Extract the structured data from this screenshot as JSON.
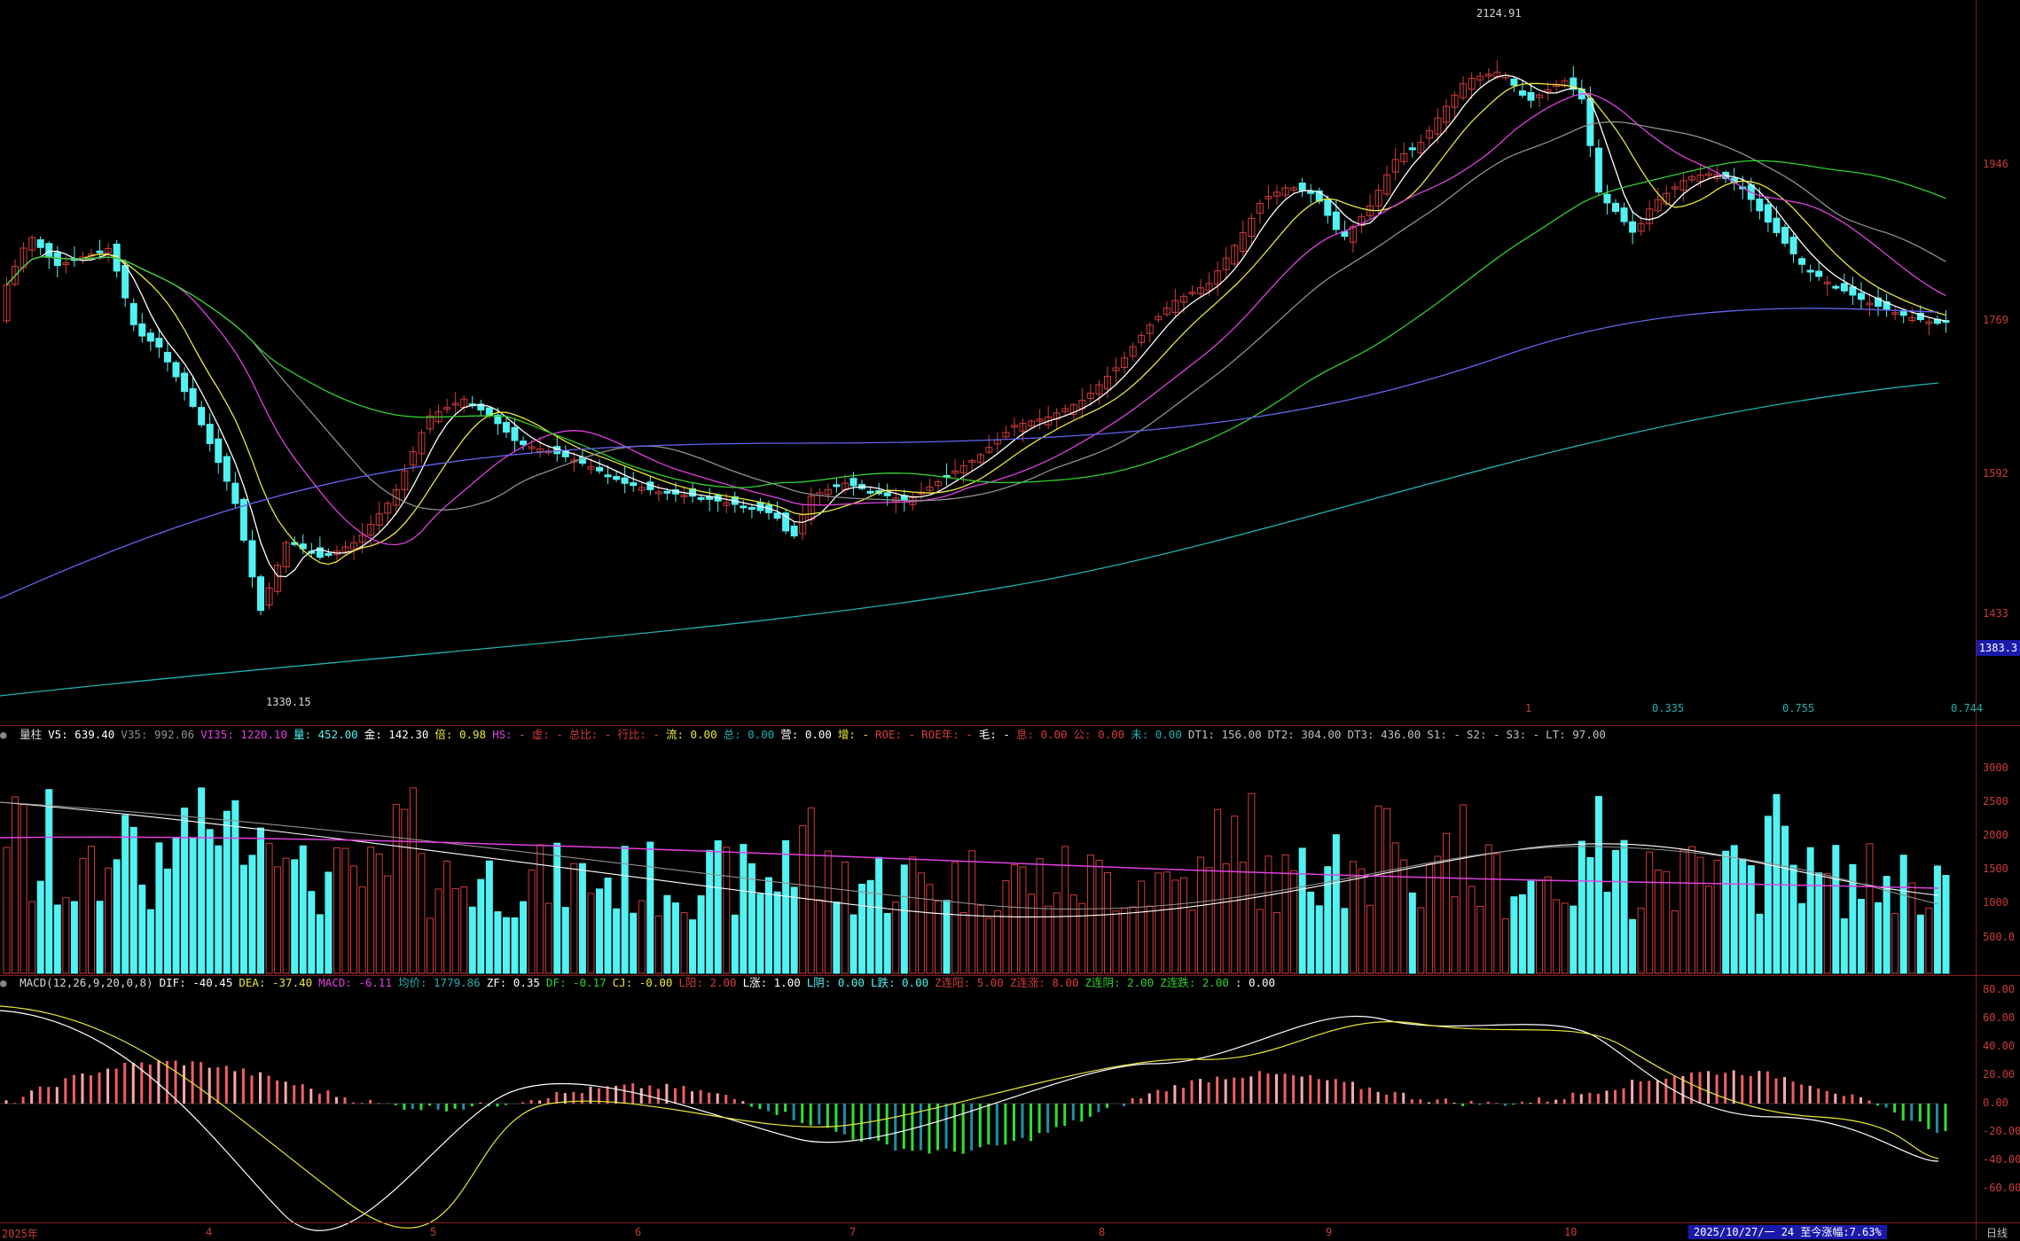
{
  "colors": {
    "up": "#d23c3c",
    "down": "#52f2f2",
    "ma5": "#ffffff",
    "ma10": "#e8e838",
    "ma20": "#e040e0",
    "ma30": "#909090",
    "ma60": "#30d030",
    "ma120": "#6464f0",
    "ma250": "#20b0b0",
    "separator": "#8b1a1a",
    "axis_text": "#c83c3c"
  },
  "main_panel": {
    "high_label": "2124.91",
    "low_label": "1330.15",
    "y_ticks": [
      "1946",
      "1769",
      "1592",
      "1433"
    ],
    "current_price_tag": "1383.3",
    "right_values": [
      "1",
      "0.335",
      "0.755",
      "0.744"
    ]
  },
  "volume_panel": {
    "indicator_items": [
      {
        "text": "量柱",
        "color": "#d8d8d8"
      },
      {
        "text": "V5: 639.40",
        "color": "#ffffff"
      },
      {
        "text": "V35: 992.06",
        "color": "#909090"
      },
      {
        "text": "VI35: 1220.10",
        "color": "#e040e0"
      },
      {
        "text": "量: 452.00",
        "color": "#52f2f2"
      },
      {
        "text": "金: 142.30",
        "color": "#ffffff"
      },
      {
        "text": "倍: 0.98",
        "color": "#e8e838"
      },
      {
        "text": "HS: -",
        "color": "#e040e0"
      },
      {
        "text": "虚: -",
        "color": "#d23c3c"
      },
      {
        "text": "总比: -",
        "color": "#d23c3c"
      },
      {
        "text": "行比: -",
        "color": "#d23c3c"
      },
      {
        "text": "流: 0.00",
        "color": "#e8e838"
      },
      {
        "text": "总: 0.00",
        "color": "#20b0b0"
      },
      {
        "text": "营: 0.00",
        "color": "#ffffff"
      },
      {
        "text": "增: -",
        "color": "#e8e838"
      },
      {
        "text": "ROE: -",
        "color": "#d23c3c"
      },
      {
        "text": "ROE年: -",
        "color": "#d23c3c"
      },
      {
        "text": "毛: -",
        "color": "#ffffff"
      },
      {
        "text": "息: 0.00",
        "color": "#d23c3c"
      },
      {
        "text": "公: 0.00",
        "color": "#d23c3c"
      },
      {
        "text": "未: 0.00",
        "color": "#20b0b0"
      },
      {
        "text": "DT1: 156.00",
        "color": "#c0c0c0"
      },
      {
        "text": "DT2: 304.00",
        "color": "#c0c0c0"
      },
      {
        "text": "DT3: 436.00",
        "color": "#c0c0c0"
      },
      {
        "text": "S1: -",
        "color": "#c0c0c0"
      },
      {
        "text": "S2: -",
        "color": "#c0c0c0"
      },
      {
        "text": "S3: -",
        "color": "#c0c0c0"
      },
      {
        "text": "LT: 97.00",
        "color": "#c0c0c0"
      }
    ],
    "y_ticks": [
      "3000",
      "2500",
      "2000",
      "1500",
      "1000",
      "500.0"
    ]
  },
  "macd_panel": {
    "indicator_items": [
      {
        "text": "MACD(12,26,9,20,0,8)",
        "color": "#d8d8d8"
      },
      {
        "text": "DIF: -40.45",
        "color": "#ffffff"
      },
      {
        "text": "DEA: -37.40",
        "color": "#e8e838"
      },
      {
        "text": "MACD: -6.11",
        "color": "#e040e0"
      },
      {
        "text": "均价: 1779.86",
        "color": "#20b0b0"
      },
      {
        "text": "ZF: 0.35",
        "color": "#ffffff"
      },
      {
        "text": "DF: -0.17",
        "color": "#30d030"
      },
      {
        "text": "CJ: -0.00",
        "color": "#e8e838"
      },
      {
        "text": "L阳: 2.00",
        "color": "#d23c3c"
      },
      {
        "text": "L涨: 1.00",
        "color": "#ffffff"
      },
      {
        "text": "L阴: 0.00",
        "color": "#52f2f2"
      },
      {
        "text": "L跌: 0.00",
        "color": "#52f2f2"
      },
      {
        "text": "Z连阳: 5.00",
        "color": "#d23c3c"
      },
      {
        "text": "Z连涨: 8.00",
        "color": "#d23c3c"
      },
      {
        "text": "Z连阴: 2.00",
        "color": "#30d030"
      },
      {
        "text": "Z连跌: 2.00",
        "color": "#30d030"
      },
      {
        "text": ": 0.00",
        "color": "#ffffff"
      }
    ],
    "y_ticks": [
      "80.00",
      "60.00",
      "40.00",
      "20.00",
      "0.00",
      "-20.00",
      "-40.00",
      "-60.00"
    ]
  },
  "x_axis": {
    "labels": [
      "2025年",
      "4",
      "5",
      "6",
      "7",
      "8",
      "9",
      "10"
    ]
  },
  "footer": {
    "range_info": "2025/10/27/一 24 至今涨幅:7.63%",
    "period": "日线"
  }
}
